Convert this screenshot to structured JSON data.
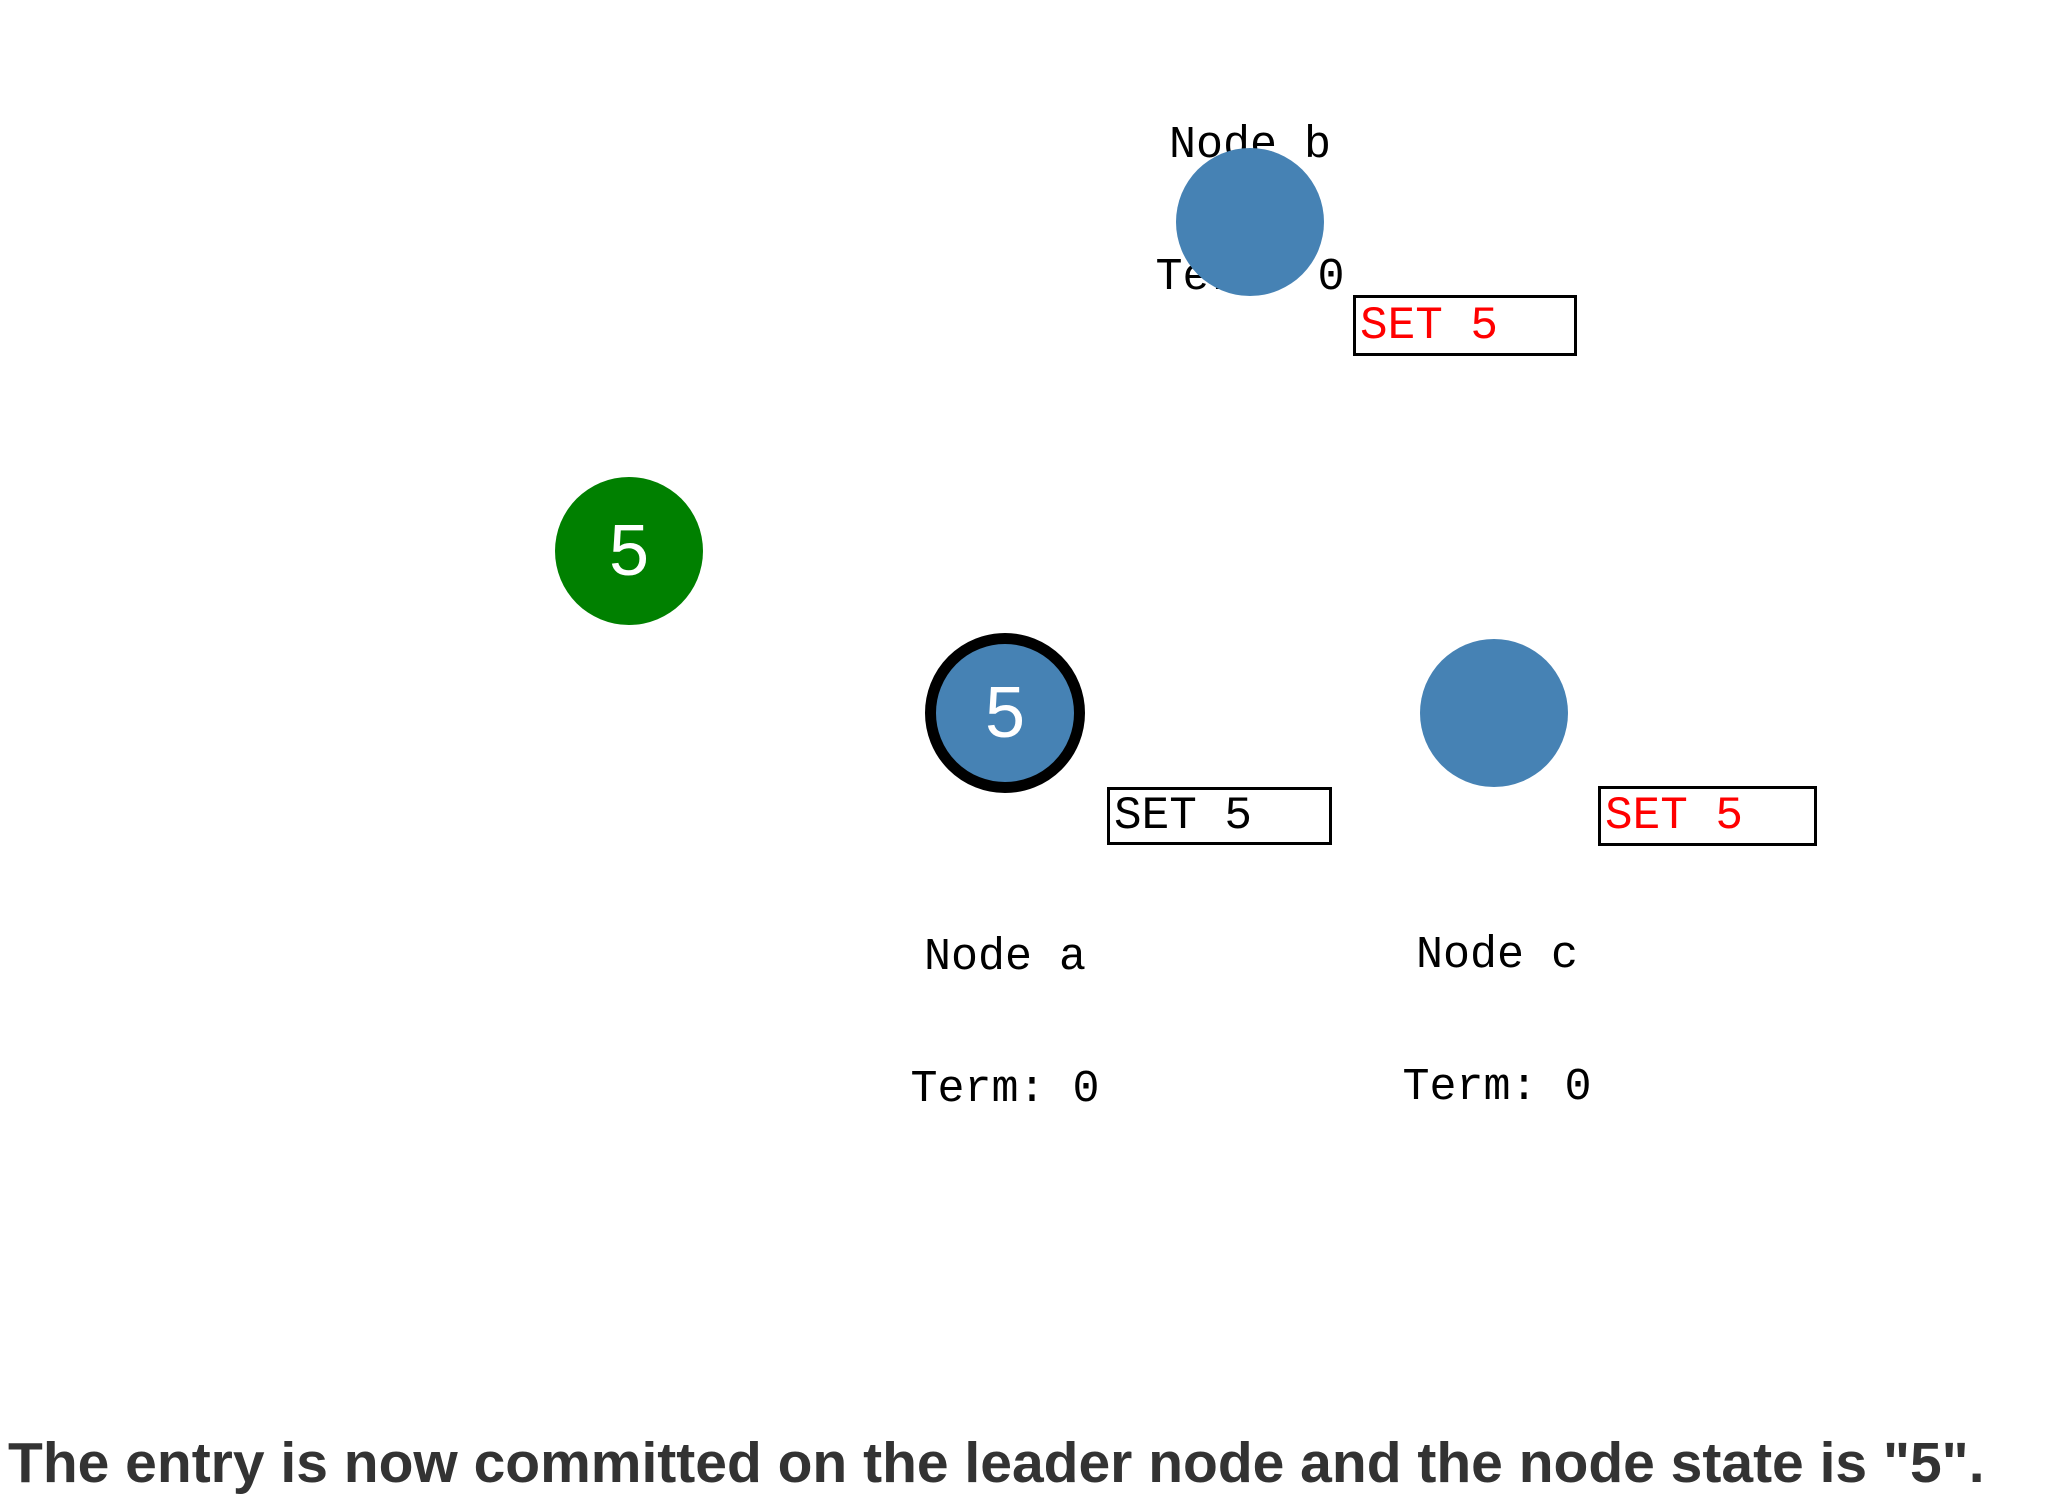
{
  "colors": {
    "follower_fill": "#4682B4",
    "leader_ring": "#000000",
    "committed_entry_fill": "#008000",
    "pending_entry_text": "#FF0000",
    "committed_entry_text": "#000000",
    "node_label_text": "#000000",
    "caption_text": "#333333",
    "state_value_text": "#ffffff"
  },
  "nodes": {
    "a": {
      "name": "Node a",
      "term": "Term: 0",
      "role": "leader",
      "state_value": "5",
      "entry_label": "SET 5",
      "entry_status": "committed"
    },
    "b": {
      "name": "Node b",
      "term": "Term: 0",
      "role": "follower",
      "state_value": "",
      "entry_label": "SET 5",
      "entry_status": "pending"
    },
    "c": {
      "name": "Node c",
      "term": "Term: 0",
      "role": "follower",
      "state_value": "",
      "entry_label": "SET 5",
      "entry_status": "pending"
    }
  },
  "committed_entry": {
    "value": "5"
  },
  "caption": "The entry is now committed on the leader node and the node state is \"5\"."
}
